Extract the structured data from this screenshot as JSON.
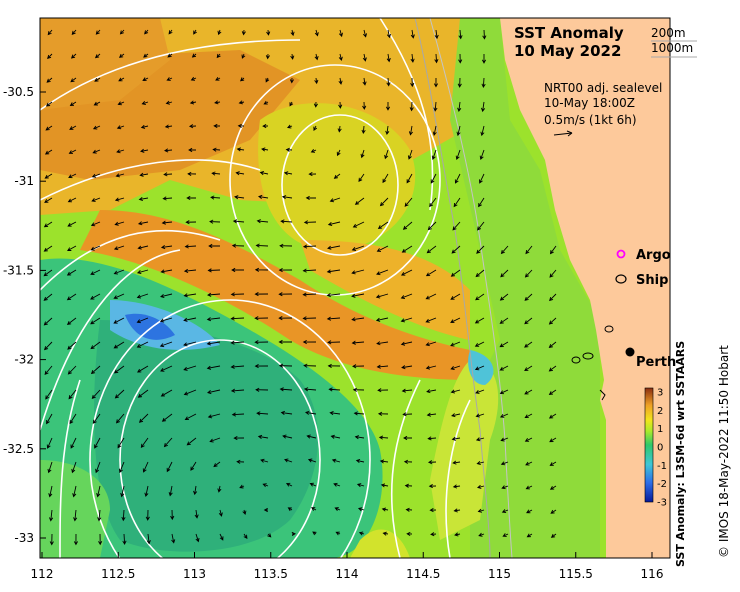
{
  "map": {
    "title_line1": "SST Anomaly",
    "title_line2": "10 May 2022",
    "isobath_1": "200m",
    "isobath_2": "1000m",
    "info_line1": "NRT00 adj. sealevel",
    "info_line2": "10-May 18:00Z",
    "info_line3": "0.5m/s (1kt 6h)",
    "legend_argo": "Argo",
    "legend_ship": "Ship",
    "city_label": "Perth",
    "colorbar_label": "SST Anomaly: L3SM-6d wrt SSTAARS",
    "credit": "© IMOS 18-May-2022 11:50 Hobart",
    "colors": {
      "land": "#fdc99b",
      "argo_marker": "#ff00ff",
      "contour": "#ffffff",
      "isobath": "#a8a8a8"
    }
  },
  "axes": {
    "x_ticks": [
      "112",
      "112.5",
      "113",
      "113.5",
      "114",
      "114.5",
      "115",
      "115.5",
      "116"
    ],
    "y_ticks": [
      "-30.5",
      "-31",
      "-31.5",
      "-32",
      "-32.5",
      "-33"
    ]
  },
  "colorbar": {
    "ticks": [
      "3",
      "2",
      "1",
      "0",
      "-1",
      "-2",
      "-3"
    ],
    "range": [
      -3,
      3
    ],
    "unit_scale": "°C anomaly"
  },
  "chart_data": {
    "type": "heatmap",
    "title": "SST Anomaly 10 May 2022",
    "x_range": [
      112,
      116
    ],
    "y_range": [
      -33.1,
      -30.1
    ],
    "zlim": [
      -3,
      3
    ],
    "regions": [
      {
        "lon": 112.6,
        "lat": -30.6,
        "value": 2.0
      },
      {
        "lon": 113.6,
        "lat": -31.1,
        "value": 1.2
      },
      {
        "lon": 113.9,
        "lat": -31.7,
        "value": 2.2
      },
      {
        "lon": 112.8,
        "lat": -32.5,
        "value": -0.6
      },
      {
        "lon": 112.7,
        "lat": -31.9,
        "value": -1.6
      },
      {
        "lon": 114.5,
        "lat": -32.7,
        "value": 0.5
      },
      {
        "lon": 115.4,
        "lat": -32.2,
        "value": 0.4
      }
    ],
    "places": [
      {
        "name": "Perth",
        "lon": 115.86,
        "lat": -31.95
      }
    ]
  }
}
